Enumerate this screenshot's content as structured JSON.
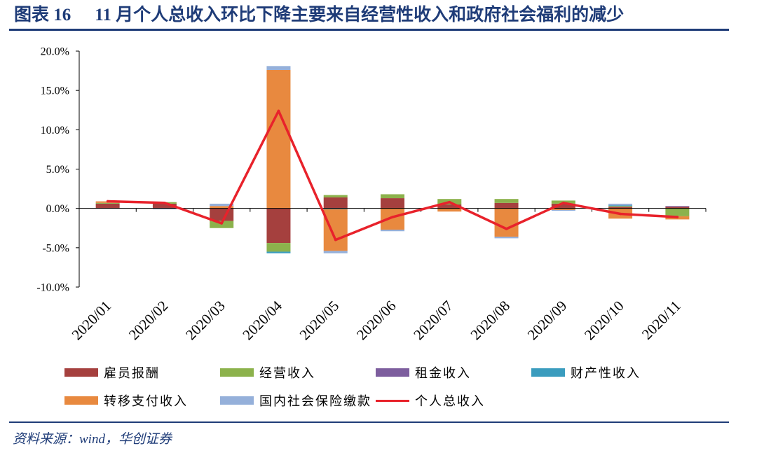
{
  "header": {
    "figure_label": "图表 16",
    "title": "11 月个人总收入环比下降主要来自经营性收入和政府社会福利的减少"
  },
  "footer": {
    "source": "资料来源：wind，华创证券"
  },
  "colors": {
    "title": "#1F3C78",
    "rules": "#1F3C78"
  },
  "chart_data": {
    "type": "bar",
    "stacked": true,
    "categories": [
      "2020/01",
      "2020/02",
      "2020/03",
      "2020/04",
      "2020/05",
      "2020/06",
      "2020/07",
      "2020/08",
      "2020/09",
      "2020/10",
      "2020/11"
    ],
    "ylim": [
      -10,
      20
    ],
    "y_ticks": [
      20,
      15,
      10,
      5,
      0,
      -5,
      -10
    ],
    "y_tick_labels": [
      "20.0%",
      "15.0%",
      "10.0%",
      "5.0%",
      "0.0%",
      "-5.0%",
      "-10.0%"
    ],
    "grid": false,
    "legend_position": "bottom",
    "series": [
      {
        "name": "雇员报酬",
        "type": "bar",
        "color": "#A5403E",
        "values": [
          0.6,
          0.6,
          -1.6,
          -4.4,
          1.4,
          1.3,
          0.5,
          0.7,
          0.6,
          0.2,
          0.2
        ]
      },
      {
        "name": "经营收入",
        "type": "bar",
        "color": "#8CB24C",
        "values": [
          0.1,
          0.2,
          -0.9,
          -1.1,
          0.3,
          0.5,
          0.7,
          0.5,
          0.4,
          0.1,
          -1.0
        ]
      },
      {
        "name": "租金收入",
        "type": "bar",
        "color": "#7D5E9E",
        "values": [
          0.0,
          0.0,
          0.0,
          0.0,
          0.0,
          0.0,
          0.0,
          0.0,
          0.0,
          0.0,
          0.1
        ]
      },
      {
        "name": "财产性收入",
        "type": "bar",
        "color": "#3A9CBE",
        "values": [
          0.0,
          0.0,
          0.0,
          -0.2,
          -0.1,
          0.0,
          0.0,
          0.0,
          0.0,
          0.1,
          0.0
        ]
      },
      {
        "name": "转移支付收入",
        "type": "bar",
        "color": "#E8893F",
        "values": [
          0.2,
          0.0,
          0.3,
          17.6,
          -5.3,
          -2.7,
          -0.4,
          -3.6,
          -0.2,
          -1.3,
          -0.4
        ]
      },
      {
        "name": "国内社会保险缴款",
        "type": "bar",
        "color": "#95B0DA",
        "values": [
          0.0,
          -0.1,
          0.3,
          0.5,
          -0.3,
          -0.2,
          0.0,
          -0.2,
          -0.1,
          0.2,
          0.0
        ]
      },
      {
        "name": "个人总收入",
        "type": "line",
        "color": "#E8222B",
        "values": [
          0.9,
          0.7,
          -1.9,
          12.4,
          -4.0,
          -1.1,
          0.8,
          -2.6,
          0.7,
          -0.7,
          -1.1
        ]
      }
    ]
  }
}
